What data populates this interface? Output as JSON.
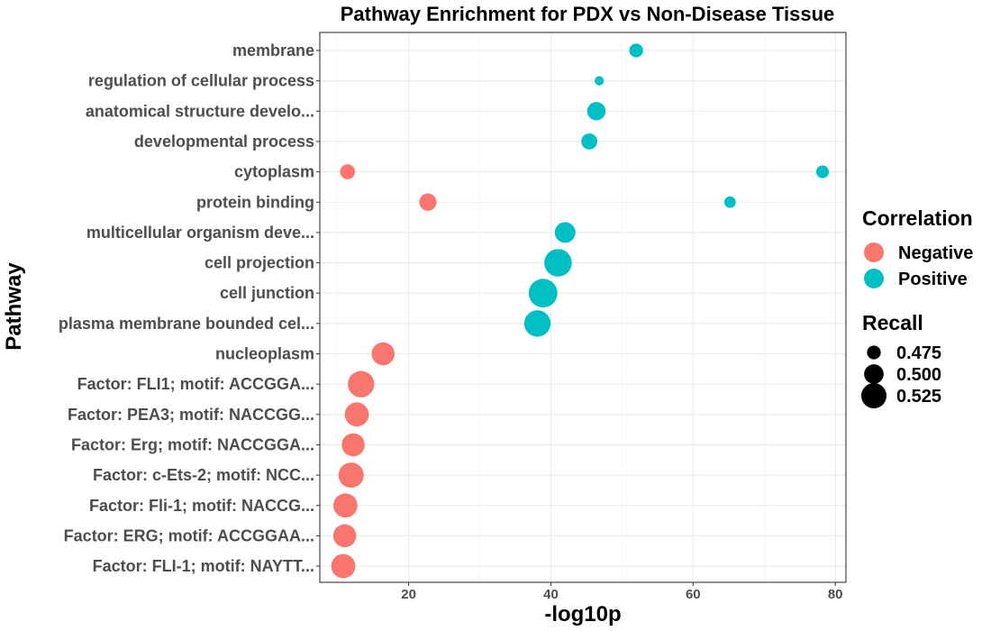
{
  "chart_data": {
    "type": "scatter",
    "title": "Pathway Enrichment for PDX vs Non-Disease Tissue",
    "xlabel": "-log10p",
    "ylabel": "Pathway",
    "xlim": [
      7.5,
      81.5
    ],
    "xticks": [
      20,
      40,
      60,
      80
    ],
    "grid": true,
    "legend_placement": "right",
    "categories": [
      "membrane",
      "regulation of cellular process",
      "anatomical structure develo...",
      "developmental process",
      "cytoplasm",
      "protein binding",
      "multicellular organism deve...",
      "cell projection",
      "cell junction",
      "plasma membrane bounded cel...",
      "nucleoplasm",
      "Factor: FLI1; motif: ACCGGA...",
      "Factor: PEA3; motif: NACCGG...",
      "Factor: Erg; motif: NACCGGA...",
      "Factor: c-Ets-2; motif: NCC...",
      "Factor: Fli-1; motif: NACCG...",
      "Factor: ERG; motif: ACCGGAA...",
      "Factor: FLI-1; motif: NAYTT..."
    ],
    "points": [
      {
        "pathway": "membrane",
        "x": 52.0,
        "recall": 0.475,
        "correlation": "Positive"
      },
      {
        "pathway": "regulation of cellular process",
        "x": 46.8,
        "recall": 0.455,
        "correlation": "Positive"
      },
      {
        "pathway": "anatomical structure develo...",
        "x": 46.4,
        "recall": 0.495,
        "correlation": "Positive"
      },
      {
        "pathway": "developmental process",
        "x": 45.4,
        "recall": 0.485,
        "correlation": "Positive"
      },
      {
        "pathway": "cytoplasm",
        "x": 78.2,
        "recall": 0.47,
        "correlation": "Positive"
      },
      {
        "pathway": "cytoplasm",
        "x": 11.4,
        "recall": 0.48,
        "correlation": "Negative"
      },
      {
        "pathway": "protein binding",
        "x": 65.2,
        "recall": 0.465,
        "correlation": "Positive"
      },
      {
        "pathway": "protein binding",
        "x": 22.7,
        "recall": 0.49,
        "correlation": "Negative"
      },
      {
        "pathway": "multicellular organism deve...",
        "x": 42.0,
        "recall": 0.505,
        "correlation": "Positive"
      },
      {
        "pathway": "cell projection",
        "x": 41.0,
        "recall": 0.535,
        "correlation": "Positive"
      },
      {
        "pathway": "cell junction",
        "x": 38.9,
        "recall": 0.54,
        "correlation": "Positive"
      },
      {
        "pathway": "plasma membrane bounded cel...",
        "x": 38.1,
        "recall": 0.53,
        "correlation": "Positive"
      },
      {
        "pathway": "nucleoplasm",
        "x": 16.4,
        "recall": 0.515,
        "correlation": "Negative"
      },
      {
        "pathway": "Factor: FLI1; motif: ACCGGA...",
        "x": 13.3,
        "recall": 0.53,
        "correlation": "Negative"
      },
      {
        "pathway": "Factor: PEA3; motif: NACCGG...",
        "x": 12.7,
        "recall": 0.52,
        "correlation": "Negative"
      },
      {
        "pathway": "Factor: Erg; motif: NACCGGA...",
        "x": 12.2,
        "recall": 0.515,
        "correlation": "Negative"
      },
      {
        "pathway": "Factor: c-Ets-2; motif: NCC...",
        "x": 11.9,
        "recall": 0.525,
        "correlation": "Negative"
      },
      {
        "pathway": "Factor: Fli-1; motif: NACCG...",
        "x": 11.1,
        "recall": 0.52,
        "correlation": "Negative"
      },
      {
        "pathway": "Factor: ERG; motif: ACCGGAA...",
        "x": 11.0,
        "recall": 0.515,
        "correlation": "Negative"
      },
      {
        "pathway": "Factor: FLI-1; motif: NAYTT...",
        "x": 10.8,
        "recall": 0.52,
        "correlation": "Negative"
      }
    ],
    "legend": {
      "color_title": "Correlation",
      "color_items": [
        {
          "label": "Negative",
          "color": "#F8766D"
        },
        {
          "label": "Positive",
          "color": "#00BFC4"
        }
      ],
      "size_title": "Recall",
      "size_items": [
        {
          "label": "0.475",
          "value": 0.475
        },
        {
          "label": "0.500",
          "value": 0.5
        },
        {
          "label": "0.525",
          "value": 0.525
        }
      ]
    },
    "colors": {
      "Negative": "#F8766D",
      "Positive": "#00BFC4"
    }
  }
}
